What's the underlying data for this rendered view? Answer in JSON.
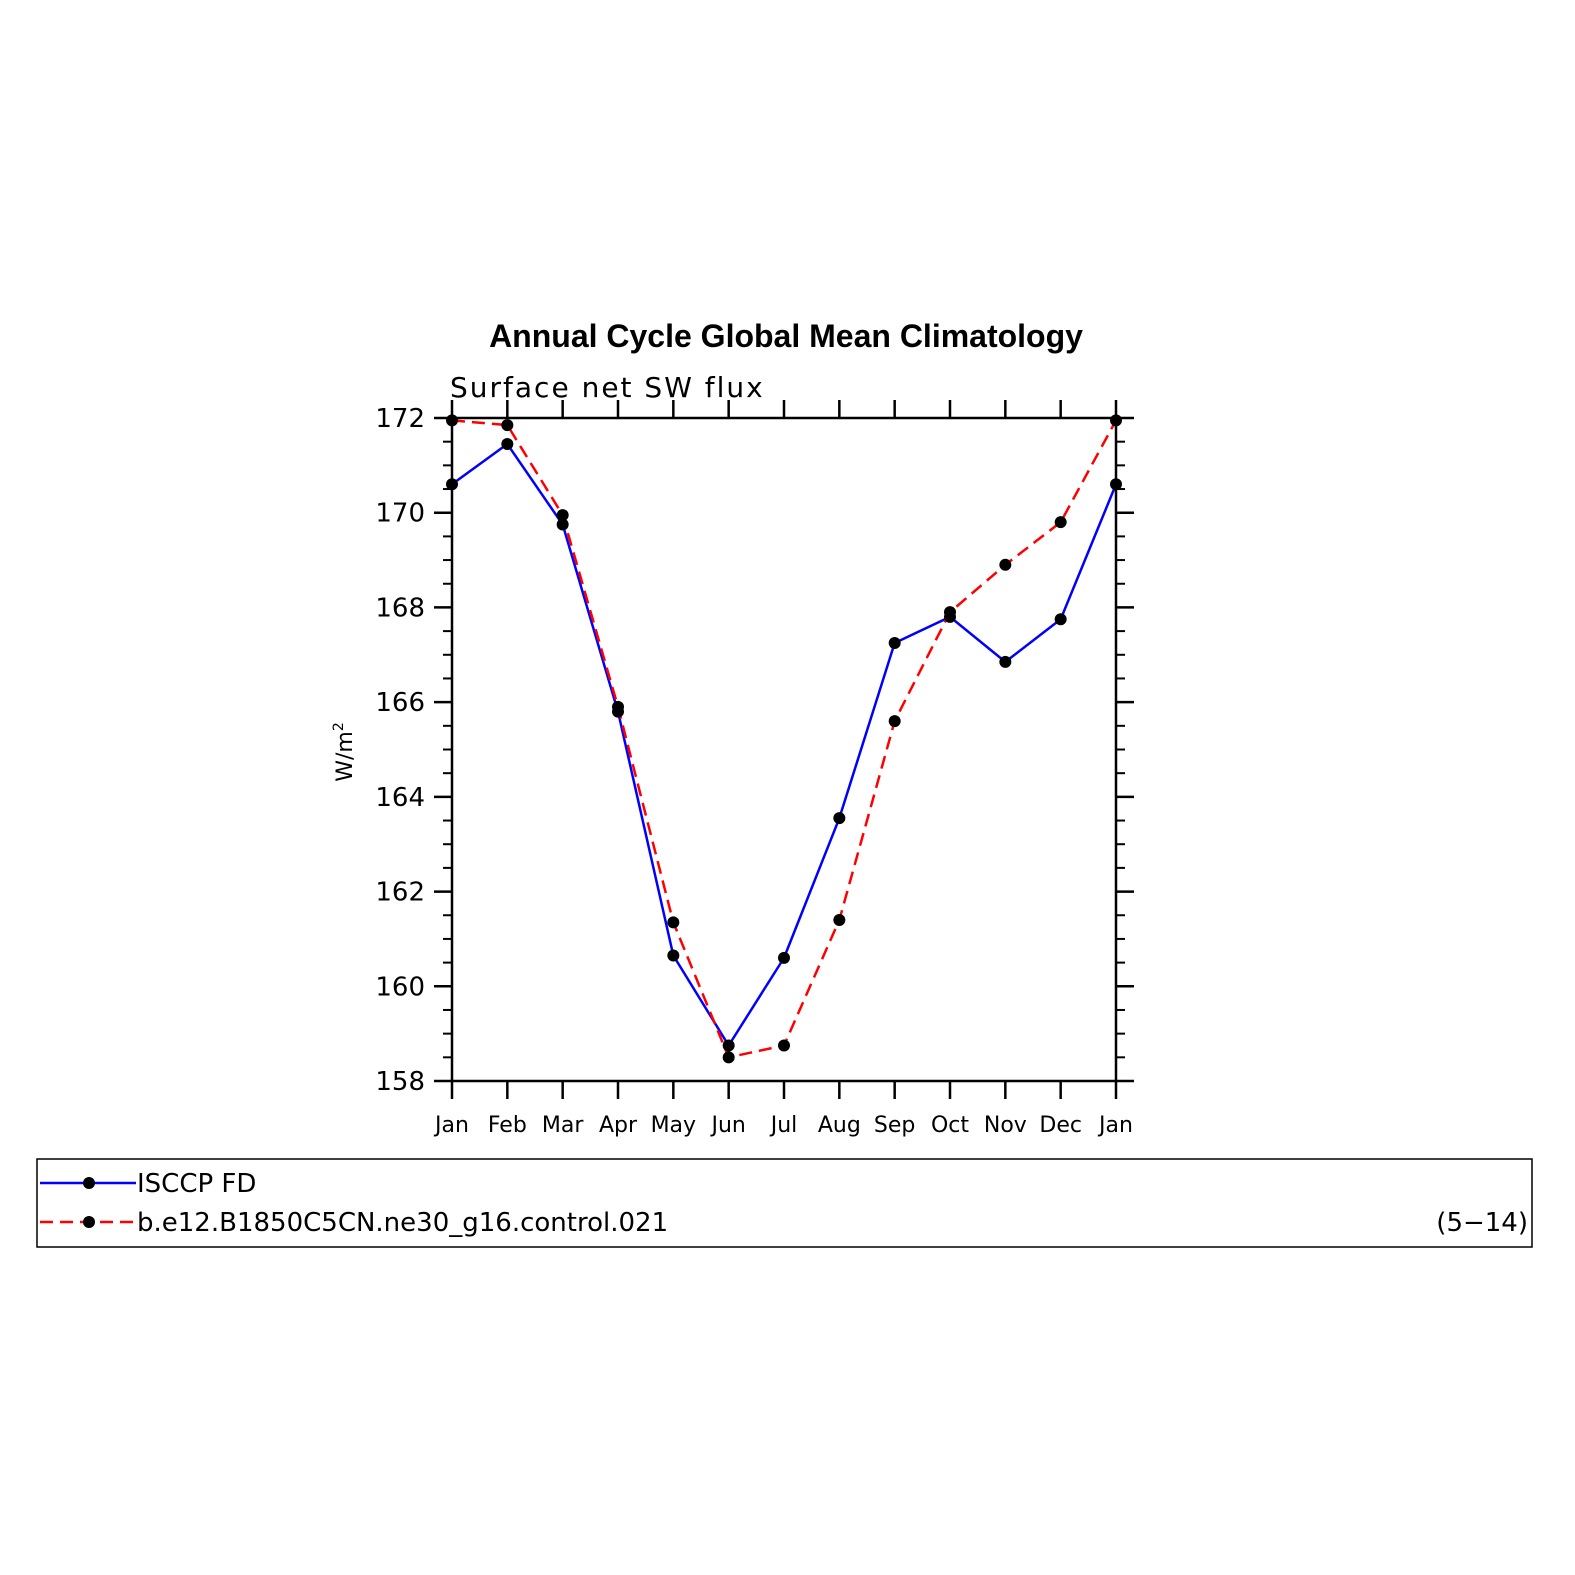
{
  "chart_data": {
    "type": "line",
    "title": "Annual Cycle Global Mean Climatology",
    "subtitle": "Surface net SW flux",
    "ylabel": "W/m",
    "ylabel_sup": "2",
    "xlabel": "",
    "categories": [
      "Jan",
      "Feb",
      "Mar",
      "Apr",
      "May",
      "Jun",
      "Jul",
      "Aug",
      "Sep",
      "Oct",
      "Nov",
      "Dec",
      "Jan"
    ],
    "ylim": [
      158,
      172
    ],
    "yticks": [
      "158",
      "160",
      "162",
      "164",
      "166",
      "168",
      "170",
      "172"
    ],
    "grid": false,
    "series": [
      {
        "name": "ISCCP FD",
        "color": "#0000ff",
        "dash": "solid",
        "values": [
          170.6,
          171.45,
          169.75,
          165.8,
          160.65,
          158.75,
          160.6,
          163.55,
          167.25,
          167.8,
          166.85,
          167.75,
          170.6
        ]
      },
      {
        "name": "b.e12.B1850C5CN.ne30_g16.control.021",
        "color": "#ff0000",
        "dash": "dashed",
        "values": [
          171.95,
          171.85,
          169.95,
          165.9,
          161.35,
          158.5,
          158.75,
          161.4,
          165.6,
          167.9,
          168.9,
          169.8,
          171.95
        ]
      }
    ],
    "legend": {
      "placement": "bottom",
      "note": "(5−14)"
    }
  }
}
